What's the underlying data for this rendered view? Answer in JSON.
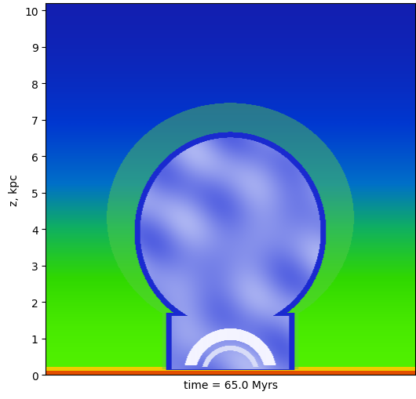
{
  "chart_data": {
    "type": "image",
    "xlabel": "time = 65.0 Myrs",
    "ylabel": "z, kpc",
    "xlim": [
      -5,
      5
    ],
    "ylim": [
      0,
      10.2
    ],
    "yticks": [
      0,
      1,
      2,
      3,
      4,
      5,
      6,
      7,
      8,
      9,
      10
    ],
    "tick_labels": "y"
  }
}
